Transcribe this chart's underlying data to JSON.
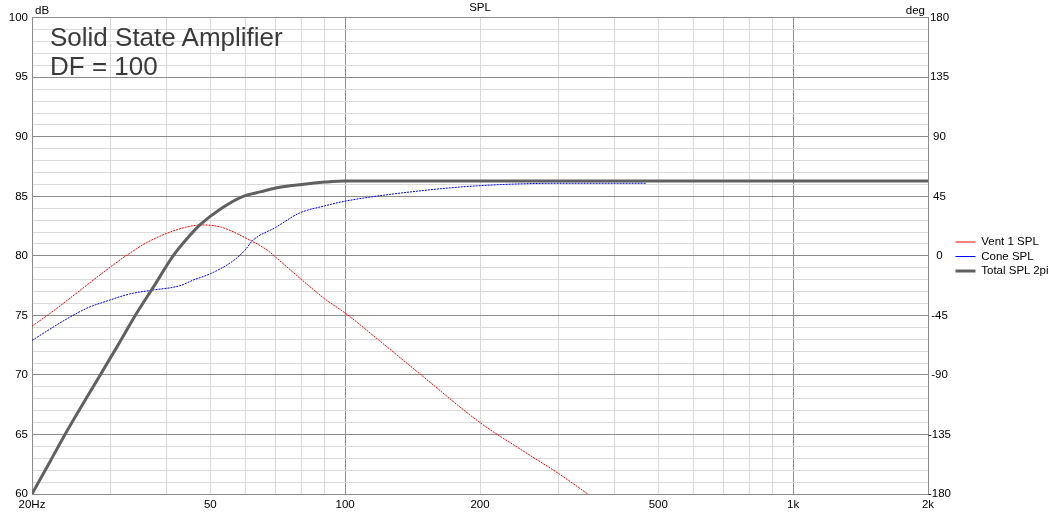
{
  "chart_data": {
    "type": "line",
    "title": "SPL",
    "ylabel": "dB",
    "y2label": "deg",
    "annotations": [
      "Solid State Amplifier",
      "DF = 100"
    ],
    "log": "x",
    "grid": true,
    "legend": "right",
    "marker": "none",
    "xlim": [
      20,
      2000
    ],
    "xticks": [
      {
        "value": 20,
        "label": "20Hz"
      },
      {
        "value": 30,
        "label": null
      },
      {
        "value": 40,
        "label": null
      },
      50,
      {
        "value": 60,
        "label": null
      },
      {
        "value": 70,
        "label": null
      },
      {
        "value": 80,
        "label": null
      },
      {
        "value": 90,
        "label": null
      },
      100,
      200,
      {
        "value": 300,
        "label": null
      },
      {
        "value": 400,
        "label": null
      },
      500,
      {
        "value": 600,
        "label": null
      },
      {
        "value": 700,
        "label": null
      },
      {
        "value": 800,
        "label": null
      },
      {
        "value": 900,
        "label": null
      },
      {
        "value": 1000,
        "label": "1k"
      },
      {
        "value": 2000,
        "label": "2k"
      }
    ],
    "ylim": [
      60,
      100
    ],
    "yticks": [
      60,
      {
        "value": 61,
        "label": null
      },
      {
        "value": 62,
        "label": null
      },
      {
        "value": 63,
        "label": null
      },
      {
        "value": 64,
        "label": null
      },
      65,
      {
        "value": 66,
        "label": null
      },
      {
        "value": 67,
        "label": null
      },
      {
        "value": 68,
        "label": null
      },
      {
        "value": 69,
        "label": null
      },
      70,
      {
        "value": 71,
        "label": null
      },
      {
        "value": 72,
        "label": null
      },
      {
        "value": 73,
        "label": null
      },
      {
        "value": 74,
        "label": null
      },
      75,
      {
        "value": 76,
        "label": null
      },
      {
        "value": 77,
        "label": null
      },
      {
        "value": 78,
        "label": null
      },
      {
        "value": 79,
        "label": null
      },
      80,
      {
        "value": 81,
        "label": null
      },
      {
        "value": 82,
        "label": null
      },
      {
        "value": 83,
        "label": null
      },
      {
        "value": 84,
        "label": null
      },
      85,
      {
        "value": 86,
        "label": null
      },
      {
        "value": 87,
        "label": null
      },
      {
        "value": 88,
        "label": null
      },
      {
        "value": 89,
        "label": null
      },
      90,
      {
        "value": 91,
        "label": null
      },
      {
        "value": 92,
        "label": null
      },
      {
        "value": 93,
        "label": null
      },
      {
        "value": 94,
        "label": null
      },
      95,
      {
        "value": 96,
        "label": null
      },
      {
        "value": 97,
        "label": null
      },
      {
        "value": 98,
        "label": null
      },
      {
        "value": 99,
        "label": null
      },
      100
    ],
    "y2lim": [
      -180,
      180
    ],
    "y2ticks": [
      -180,
      -135,
      -90,
      -45,
      0,
      45,
      90,
      135,
      180
    ],
    "series": [
      {
        "name": "Vent 1 SPL",
        "color": "#ff0000",
        "line_style": "dashed",
        "x": [
          20,
          22,
          25,
          30,
          32.4,
          36,
          40,
          44,
          47.9,
          53,
          60,
          66.9,
          71.4,
          80,
          90,
          100,
          120,
          150,
          200,
          250,
          300,
          348
        ],
        "values": [
          74.1,
          75.2,
          76.8,
          79.1,
          80.0,
          81.1,
          81.9,
          82.4,
          82.6,
          82.4,
          81.5,
          80.5,
          79.6,
          78.0,
          76.4,
          75.2,
          72.8,
          69.8,
          66.0,
          63.6,
          61.7,
          60.0
        ]
      },
      {
        "name": "Cone SPL",
        "color": "#0000ff",
        "line_style": "dashed",
        "x": [
          20,
          23.9,
          26.5,
          29.9,
          33,
          36.7,
          42.8,
          46,
          50,
          56.3,
          59.8,
          62.2,
          70,
          79.1,
          90,
          100,
          150,
          200,
          299,
          470
        ],
        "values": [
          72.9,
          74.7,
          75.6,
          76.3,
          76.8,
          77.1,
          77.5,
          78.0,
          78.5,
          79.6,
          80.5,
          81.3,
          82.4,
          83.6,
          84.2,
          84.6,
          85.5,
          85.9,
          86.1,
          86.1
        ]
      },
      {
        "name": "Total SPL 2pi",
        "color": "#606060",
        "line_style": "solid",
        "x": [
          20,
          22,
          23.7,
          28.4,
          31,
          34,
          37.5,
          41.3,
          44.5,
          47.4,
          53,
          59.2,
          65,
          70,
          80,
          90,
          100,
          120,
          200,
          500,
          1000,
          2000
        ],
        "values": [
          60,
          62.8,
          65,
          70,
          72.4,
          75,
          77.5,
          80,
          81.5,
          82.6,
          84.0,
          85,
          85.4,
          85.7,
          86.0,
          86.2,
          86.3,
          86.3,
          86.3,
          86.3,
          86.3,
          86.3
        ]
      }
    ]
  }
}
